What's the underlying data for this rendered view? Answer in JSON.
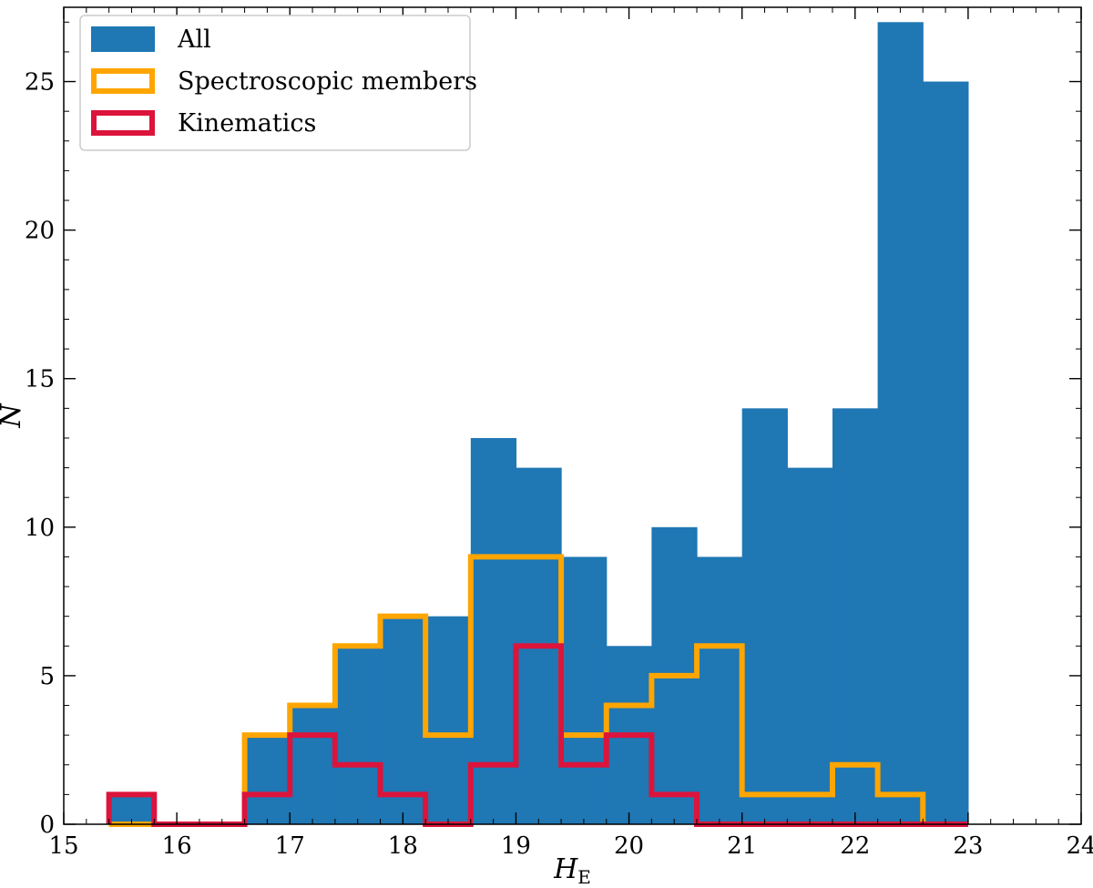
{
  "chart_data": {
    "type": "histogram",
    "bin_edges": [
      15.4,
      15.8,
      16.2,
      16.6,
      17.0,
      17.4,
      17.8,
      18.2,
      18.6,
      19.0,
      19.4,
      19.8,
      20.2,
      20.6,
      21.0,
      21.4,
      21.8,
      22.2,
      22.6,
      23.0
    ],
    "series": [
      {
        "name": "All",
        "style": "filled",
        "color": "#1f77b4",
        "values": [
          1,
          0,
          0,
          3,
          4,
          6,
          7,
          7,
          13,
          12,
          9,
          6,
          10,
          9,
          14,
          12,
          14,
          27,
          25
        ]
      },
      {
        "name": "Spectroscopic members",
        "style": "step",
        "color": "#ffa500",
        "values": [
          0,
          0,
          0,
          3,
          4,
          6,
          7,
          3,
          9,
          9,
          3,
          4,
          5,
          6,
          1,
          1,
          2,
          1,
          0
        ]
      },
      {
        "name": "Kinematics",
        "style": "step",
        "color": "#dc143c",
        "values": [
          1,
          0,
          0,
          1,
          3,
          2,
          1,
          0,
          2,
          6,
          2,
          3,
          1,
          0,
          0,
          0,
          0,
          0,
          0
        ]
      }
    ],
    "xlim": [
      15,
      24
    ],
    "ylim": [
      0,
      27.5
    ],
    "xticks": [
      15,
      16,
      17,
      18,
      19,
      20,
      21,
      22,
      23,
      24
    ],
    "yticks": [
      0,
      5,
      10,
      15,
      20,
      25
    ],
    "xlabel_main": "H",
    "xlabel_sub": "E",
    "ylabel": "N",
    "legend_location": "top-left"
  }
}
